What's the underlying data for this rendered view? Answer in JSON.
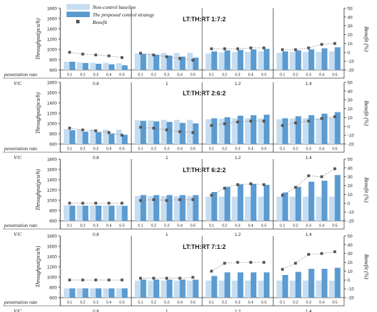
{
  "legend": {
    "entries": [
      {
        "label": "Non-control baseline",
        "color": "#c6dcf0"
      },
      {
        "label": "The proposed control strategy",
        "color": "#5b9bd1"
      },
      {
        "label": "Benefit",
        "color": "#555555"
      }
    ]
  },
  "common": {
    "ylabel": "Throughput(pcu/h)",
    "y2label": "Benefit (%)",
    "penetration_label": "penetration rate",
    "vc_label": "V/C",
    "vc_values": [
      "0.8",
      "1",
      "1.2",
      "1.4"
    ],
    "penetration_values": [
      "0.1",
      "0.2",
      "0.3",
      "0.4",
      "0.5"
    ],
    "ylim": [
      600,
      1800
    ],
    "yticks": [
      600,
      800,
      1000,
      1200,
      1400,
      1600,
      1800
    ],
    "y2lim": [
      -20,
      50
    ],
    "y2ticks": [
      -20,
      -10,
      0,
      10,
      20,
      30,
      40,
      50
    ]
  },
  "chart_data": [
    {
      "type": "bar",
      "title": "LT:TH:RT   1:7:2",
      "groups": [
        "0.8",
        "1",
        "1.2",
        "1.4"
      ],
      "categories": [
        "0.1",
        "0.2",
        "0.3",
        "0.4",
        "0.5"
      ],
      "series": [
        {
          "name": "Non-control baseline",
          "values": [
            [
              760,
              750,
              740,
              740,
              730
            ],
            [
              920,
              920,
              930,
              930,
              930
            ],
            [
              920,
              940,
              950,
              950,
              960
            ],
            [
              930,
              950,
              950,
              950,
              960
            ]
          ]
        },
        {
          "name": "The proposed control strategy",
          "values": [
            [
              760,
              735,
              720,
              710,
              690
            ],
            [
              910,
              895,
              880,
              860,
              840
            ],
            [
              960,
              980,
              990,
              1000,
              1010
            ],
            [
              960,
              980,
              1000,
              1020,
              1040
            ]
          ]
        },
        {
          "name": "Benefit",
          "values": [
            [
              0,
              -2,
              -3,
              -4,
              -6
            ],
            [
              -1,
              -3,
              -5,
              -7,
              -9
            ],
            [
              4,
              4,
              4,
              5,
              5
            ],
            [
              3,
              3,
              5,
              9,
              10
            ]
          ]
        }
      ]
    },
    {
      "type": "bar",
      "title": "LT:TH:RT   2:6:2",
      "groups": [
        "0.8",
        "1",
        "1.2",
        "1.4"
      ],
      "categories": [
        "0.1",
        "0.2",
        "0.3",
        "0.4",
        "0.5"
      ],
      "series": [
        {
          "name": "Non-control baseline",
          "values": [
            [
              890,
              880,
              880,
              880,
              880
            ],
            [
              1060,
              1060,
              1070,
              1070,
              1070
            ],
            [
              1080,
              1090,
              1100,
              1100,
              1100
            ],
            [
              1080,
              1100,
              1100,
              1100,
              1110
            ]
          ]
        },
        {
          "name": "The proposed control strategy",
          "values": [
            [
              870,
              840,
              830,
              800,
              780
            ],
            [
              1050,
              1040,
              1030,
              1010,
              1000
            ],
            [
              1100,
              1120,
              1150,
              1160,
              1170
            ],
            [
              1100,
              1140,
              1160,
              1190,
              1220
            ]
          ]
        },
        {
          "name": "Benefit",
          "values": [
            [
              -2,
              -4,
              -5,
              -7,
              -10
            ],
            [
              -1,
              -2,
              -4,
              -6,
              -7
            ],
            [
              1,
              3,
              5,
              6,
              6
            ],
            [
              1,
              4,
              6,
              9,
              11
            ]
          ]
        }
      ]
    },
    {
      "type": "bar",
      "title": "LT:TH:RT   6:2:2",
      "groups": [
        "0.8",
        "1",
        "1.2",
        "1.4"
      ],
      "categories": [
        "0.1",
        "0.2",
        "0.3",
        "0.4",
        "0.5"
      ],
      "series": [
        {
          "name": "Non-control baseline",
          "values": [
            [
              900,
              900,
              900,
              900,
              900
            ],
            [
              1080,
              1080,
              1080,
              1080,
              1080
            ],
            [
              1070,
              1070,
              1070,
              1070,
              1070
            ],
            [
              1070,
              1070,
              1070,
              1070,
              1070
            ]
          ]
        },
        {
          "name": "The proposed control strategy",
          "values": [
            [
              895,
              895,
              895,
              895,
              890
            ],
            [
              1100,
              1100,
              1100,
              1100,
              1100
            ],
            [
              1160,
              1260,
              1310,
              1320,
              1300
            ],
            [
              1150,
              1260,
              1360,
              1380,
              1490
            ]
          ]
        },
        {
          "name": "Benefit",
          "values": [
            [
              0,
              0,
              0,
              0,
              0
            ],
            [
              3,
              4,
              3,
              4,
              4
            ],
            [
              9,
              17,
              21,
              22,
              21
            ],
            [
              9,
              18,
              31,
              30,
              39
            ]
          ]
        }
      ]
    },
    {
      "type": "bar",
      "title": "LT:TH:RT   7:1:2",
      "groups": [
        "0.8",
        "1",
        "1.2",
        "1.4"
      ],
      "categories": [
        "0.1",
        "0.2",
        "0.3",
        "0.4",
        "0.5"
      ],
      "series": [
        {
          "name": "Non-control baseline",
          "values": [
            [
              780,
              780,
              780,
              780,
              780
            ],
            [
              930,
              930,
              930,
              930,
              930
            ],
            [
              930,
              930,
              930,
              930,
              930
            ],
            [
              930,
              930,
              930,
              930,
              930
            ]
          ]
        },
        {
          "name": "The proposed control strategy",
          "values": [
            [
              780,
              780,
              780,
              780,
              780
            ],
            [
              950,
              950,
              950,
              950,
              950
            ],
            [
              1020,
              1090,
              1090,
              1090,
              1090
            ],
            [
              1040,
              1100,
              1160,
              1160,
              1180
            ]
          ]
        },
        {
          "name": "Benefit",
          "values": [
            [
              0,
              0,
              0,
              0,
              0
            ],
            [
              2,
              2,
              2,
              2,
              3
            ],
            [
              10,
              19,
              20,
              20,
              20
            ],
            [
              12,
              19,
              29,
              30,
              32
            ]
          ]
        }
      ]
    }
  ]
}
